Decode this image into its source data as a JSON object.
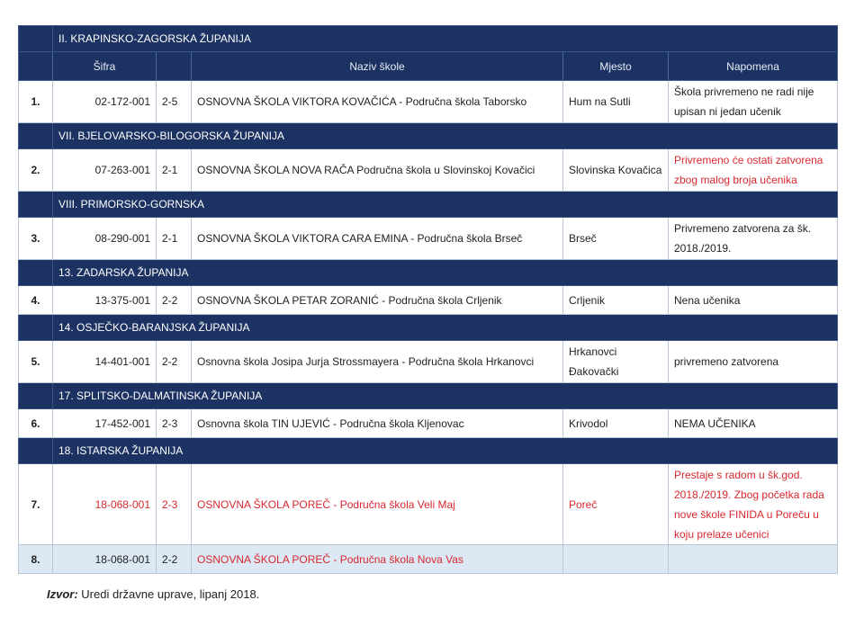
{
  "columns": {
    "sifra": "Šifra",
    "code": "",
    "naziv": "Naziv škole",
    "mjesto": "Mjesto",
    "napomena": "Napomena"
  },
  "groups": [
    {
      "county": "II. KRAPINSKO-ZAGORSKA ŽUPANIJA",
      "rows": [
        {
          "num": "1.",
          "sifra": "02-172-001",
          "code": "2-5",
          "naziv": "OSNOVNA ŠKOLA VIKTORA KOVAČIĆA - Područna škola Taborsko",
          "mjesto": "Hum na Sutli",
          "napomena": "Škola privremeno ne radi nije upisan ni jedan učenik"
        }
      ]
    },
    {
      "county": "VII. BJELOVARSKO-BILOGORSKA ŽUPANIJA",
      "rows": [
        {
          "num": "2.",
          "sifra": "07-263-001",
          "code": "2-1",
          "naziv": "OSNOVNA ŠKOLA NOVA RAČA Područna škola u Slovinskoj Kovačici",
          "mjesto": "Slovinska Kovačica",
          "napomena": "Privremeno će ostati zatvorena zbog malog broja učenika"
        }
      ]
    },
    {
      "county": "VIII. PRIMORSKO-GORNSKA",
      "rows": [
        {
          "num": "3.",
          "sifra": "08-290-001",
          "code": "2-1",
          "naziv": "OSNOVNA ŠKOLA VIKTORA CARA EMINA - Područna škola Brseč",
          "mjesto": "Brseč",
          "napomena": "Privremeno zatvorena za šk. 2018./2019."
        }
      ]
    },
    {
      "county": "13. ZADARSKA ŽUPANIJA",
      "rows": [
        {
          "num": "4.",
          "sifra": "13-375-001",
          "code": "2-2",
          "naziv": "OSNOVNA ŠKOLA PETAR ZORANIĆ - Područna škola Crljenik",
          "mjesto": "Crljenik",
          "napomena": "Nena učenika"
        }
      ]
    },
    {
      "county": "14. OSJEČKO-BARANJSKA ŽUPANIJA",
      "rows": [
        {
          "num": "5.",
          "sifra": "14-401-001",
          "code": "2-2",
          "naziv": "Osnovna škola Josipa Jurja Strossmayera - Područna škola Hrkanovci",
          "mjesto": "Hrkanovci Đakovački",
          "napomena": "privremeno zatvorena"
        }
      ]
    },
    {
      "county": "17. SPLITSKO-DALMATINSKA ŽUPANIJA",
      "rows": [
        {
          "num": "6.",
          "sifra": "17-452-001",
          "code": "2-3",
          "naziv": "Osnovna škola TIN UJEVIĆ - Područna škola Kljenovac",
          "mjesto": "Krivodol",
          "napomena": "NEMA UČENIKA"
        }
      ]
    },
    {
      "county": "18. ISTARSKA ŽUPANIJA",
      "rows": [
        {
          "num": "7.",
          "sifra": "18-068-001",
          "code": "2-3",
          "naziv": "OSNOVNA ŠKOLA POREČ - Područna škola Veli Maj",
          "mjesto": "Poreč",
          "napomena": "Prestaje s radom u šk.god. 2018./2019. Zbog početka rada nove škole FINIDA u Poreču u koju prelaze učenici"
        },
        {
          "num": "8.",
          "sifra": "18-068-001",
          "code": "2-2",
          "naziv": "OSNOVNA ŠKOLA POREČ - Područna škola Nova Vas",
          "mjesto": "",
          "napomena": ""
        }
      ]
    }
  ],
  "source": {
    "label": "Izvor:",
    "text": " Uredi državne uprave, lipanj 2018."
  },
  "colors": {
    "header": "#1c3262",
    "highlight": "#d8282f",
    "alt_row": "#dce8f4"
  }
}
